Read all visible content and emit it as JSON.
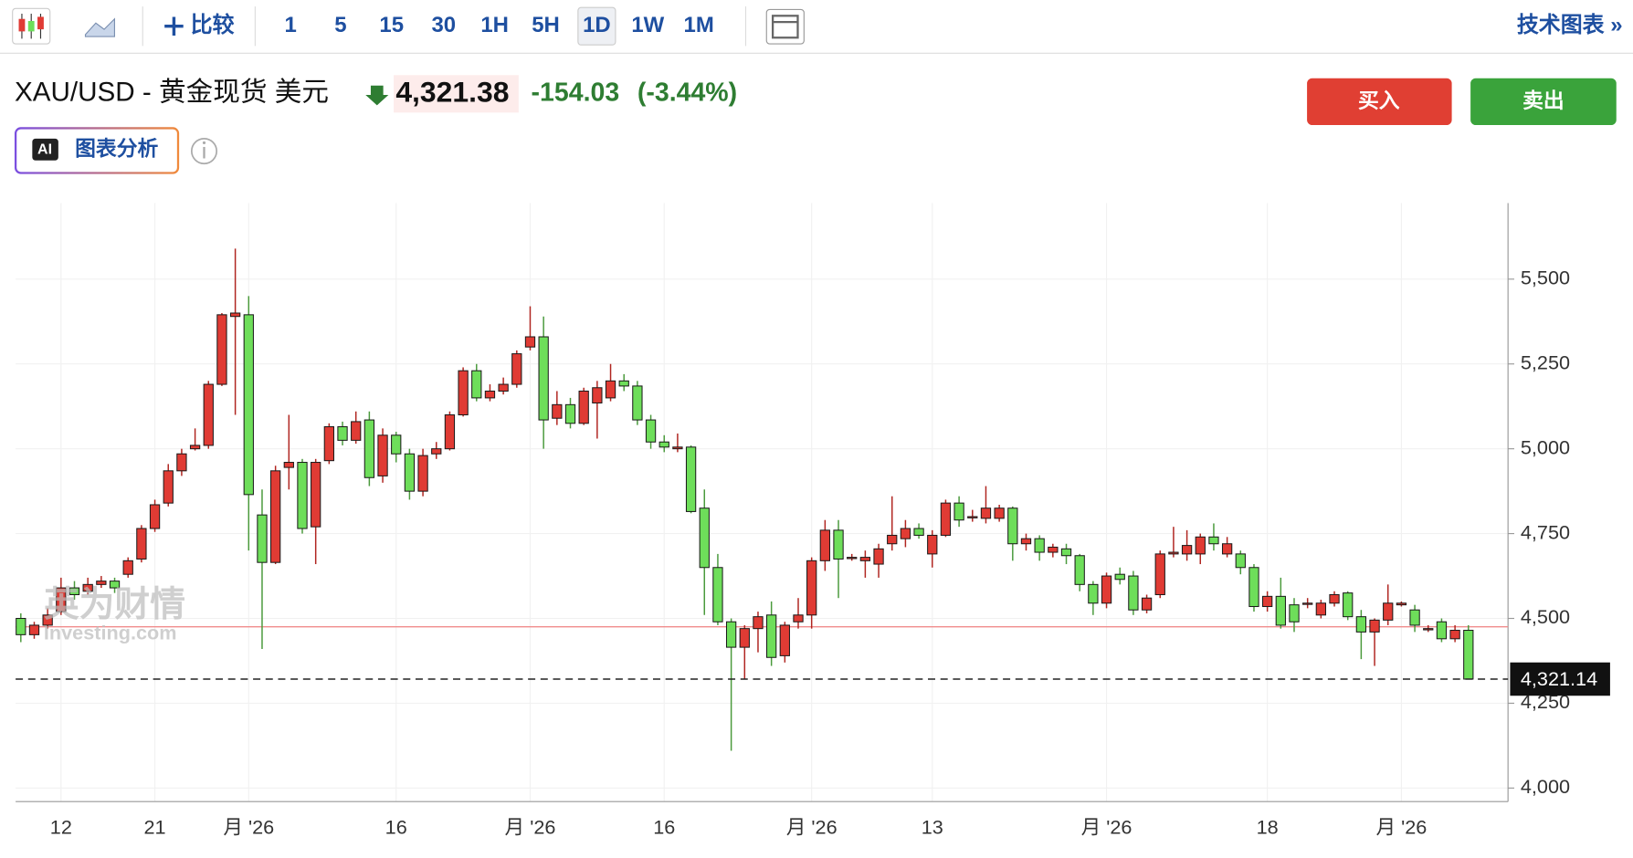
{
  "toolbar": {
    "compare": "比较",
    "intervals": [
      "1",
      "5",
      "15",
      "30",
      "1H",
      "5H",
      "1D",
      "1W",
      "1M"
    ],
    "active": "1D",
    "tech": "技术图表 »"
  },
  "header": {
    "symbol": "XAU/USD - 黄金现货 美元",
    "price": "4,321.38",
    "change": "-154.03",
    "change_pct": "(-3.44%)"
  },
  "buttons": {
    "buy": "买入",
    "sell": "卖出"
  },
  "ai": {
    "badge": "AI",
    "label": "图表分析"
  },
  "watermark": {
    "cn": "英为财情",
    "en": "Investing.com"
  },
  "chart_data": {
    "type": "candlestick",
    "categories": [
      null,
      null,
      null,
      "12",
      null,
      null,
      null,
      null,
      null,
      null,
      "21",
      null,
      null,
      null,
      null,
      null,
      null,
      "月 '26",
      null,
      null,
      null,
      null,
      null,
      null,
      null,
      null,
      null,
      null,
      "16",
      null,
      null,
      null,
      null,
      null,
      null,
      null,
      null,
      null,
      "月 '26",
      null,
      null,
      null,
      null,
      null,
      null,
      null,
      null,
      null,
      "16",
      null,
      null,
      null,
      null,
      null,
      null,
      null,
      null,
      null,
      null,
      "月 '26",
      null,
      null,
      null,
      null,
      null,
      null,
      null,
      null,
      "13",
      null,
      null,
      null,
      null,
      null,
      null,
      null,
      null,
      null,
      null,
      null,
      null,
      "月 '26",
      null,
      null,
      null,
      null,
      null,
      null,
      null,
      null,
      null,
      null,
      null,
      "18",
      null,
      null,
      null,
      null,
      null,
      null,
      null,
      null,
      null,
      "月 '26",
      null,
      null,
      null,
      null,
      null
    ],
    "open": [
      4500,
      4452,
      4480,
      4520,
      4590,
      4580,
      4600,
      4610,
      4630,
      4675,
      4765,
      4840,
      4935,
      5000,
      5010,
      5190,
      5390,
      5395,
      4805,
      4665,
      4945,
      4960,
      4770,
      4965,
      5065,
      5025,
      5085,
      4920,
      5040,
      4985,
      4875,
      4985,
      5000,
      5100,
      5230,
      5150,
      5170,
      5190,
      5300,
      5330,
      5090,
      5130,
      5075,
      5135,
      5150,
      5200,
      5185,
      5085,
      5020,
      5000,
      5005,
      4825,
      4650,
      4490,
      4415,
      4470,
      4510,
      4390,
      4490,
      4510,
      4670,
      4760,
      4680,
      4670,
      4660,
      4720,
      4735,
      4765,
      4690,
      4745,
      4840,
      4800,
      4795,
      4795,
      4825,
      4720,
      4735,
      4695,
      4705,
      4685,
      4600,
      4545,
      4630,
      4625,
      4525,
      4570,
      4690,
      4690,
      4690,
      4740,
      4690,
      4690,
      4650,
      4535,
      4565,
      4540,
      4545,
      4510,
      4545,
      4575,
      4505,
      4460,
      4495,
      4540,
      4525,
      4470,
      4490,
      4440,
      4465
    ],
    "high": [
      4515,
      4490,
      4530,
      4620,
      4610,
      4620,
      4625,
      4620,
      4680,
      4775,
      4850,
      4955,
      5000,
      5060,
      5200,
      5400,
      5590,
      5450,
      4880,
      4950,
      5100,
      4970,
      4970,
      5075,
      5080,
      5110,
      5110,
      5060,
      5050,
      5000,
      5000,
      5020,
      5110,
      5240,
      5250,
      5190,
      5210,
      5290,
      5420,
      5390,
      5170,
      5150,
      5180,
      5200,
      5250,
      5220,
      5200,
      5100,
      5040,
      5045,
      5010,
      4880,
      4690,
      4500,
      4480,
      4520,
      4550,
      4490,
      4560,
      4680,
      4790,
      4790,
      4690,
      4700,
      4720,
      4860,
      4790,
      4780,
      4760,
      4850,
      4860,
      4820,
      4890,
      4835,
      4830,
      4750,
      4745,
      4720,
      4720,
      4690,
      4610,
      4635,
      4650,
      4640,
      4570,
      4700,
      4770,
      4760,
      4750,
      4780,
      4740,
      4700,
      4660,
      4580,
      4620,
      4560,
      4560,
      4555,
      4580,
      4580,
      4525,
      4500,
      4600,
      4550,
      4540,
      4480,
      4500,
      4480,
      4480
    ],
    "low": [
      4430,
      4440,
      4470,
      4510,
      4555,
      4570,
      4590,
      4575,
      4620,
      4665,
      4755,
      4830,
      4920,
      4995,
      5000,
      5185,
      5100,
      4700,
      4410,
      4660,
      4880,
      4750,
      4660,
      4955,
      5010,
      5015,
      4890,
      4900,
      4960,
      4850,
      4860,
      4970,
      4995,
      5095,
      5140,
      5140,
      5160,
      5180,
      5290,
      5000,
      5070,
      5060,
      5070,
      5030,
      5140,
      5170,
      5070,
      5000,
      4990,
      4990,
      4810,
      4510,
      4480,
      4110,
      4320,
      4400,
      4360,
      4370,
      4470,
      4470,
      4640,
      4560,
      4670,
      4620,
      4620,
      4700,
      4710,
      4735,
      4650,
      4740,
      4770,
      4785,
      4780,
      4785,
      4670,
      4700,
      4670,
      4680,
      4660,
      4580,
      4510,
      4530,
      4600,
      4510,
      4515,
      4560,
      4680,
      4670,
      4660,
      4700,
      4680,
      4630,
      4520,
      4520,
      4470,
      4460,
      4530,
      4500,
      4535,
      4495,
      4380,
      4360,
      4480,
      4535,
      4460,
      4460,
      4430,
      4430,
      4321.14
    ],
    "close": [
      4452,
      4480,
      4510,
      4590,
      4570,
      4600,
      4610,
      4590,
      4670,
      4765,
      4835,
      4935,
      4985,
      5010,
      5190,
      5395,
      5400,
      4865,
      4665,
      4935,
      4960,
      4765,
      4960,
      5065,
      5025,
      5080,
      4915,
      5040,
      4985,
      4875,
      4980,
      5000,
      5100,
      5230,
      5150,
      5170,
      5190,
      5280,
      5330,
      5085,
      5130,
      5075,
      5170,
      5180,
      5200,
      5185,
      5085,
      5020,
      5005,
      5005,
      4815,
      4650,
      4490,
      4415,
      4470,
      4505,
      4385,
      4480,
      4510,
      4670,
      4760,
      4675,
      4680,
      4680,
      4705,
      4745,
      4765,
      4745,
      4745,
      4840,
      4790,
      4800,
      4825,
      4825,
      4720,
      4735,
      4695,
      4710,
      4685,
      4600,
      4545,
      4625,
      4615,
      4525,
      4560,
      4690,
      4695,
      4715,
      4740,
      4720,
      4720,
      4650,
      4535,
      4565,
      4480,
      4490,
      4545,
      4545,
      4570,
      4505,
      4460,
      4495,
      4545,
      4545,
      4480,
      4470,
      4440,
      4465,
      4321.14
    ],
    "up_color": "#e03b34",
    "down_color": "#6ede5a",
    "edge_color": "#1a1a1a",
    "reference_line": 4475.41,
    "reference_color": "#f08c8c",
    "last_price": 4321.14,
    "last_price_label": "4,321.14",
    "ylim": [
      3960,
      5724
    ],
    "yticks": [
      {
        "value": 4000,
        "label": "4,000"
      },
      {
        "value": 4250,
        "label": "4,250"
      },
      {
        "value": 4500,
        "label": "4,500"
      },
      {
        "value": 4750,
        "label": "4,750"
      },
      {
        "value": 5000,
        "label": "5,000"
      },
      {
        "value": 5250,
        "label": "5,250"
      },
      {
        "value": 5500,
        "label": "5,500"
      }
    ],
    "grid": true
  }
}
